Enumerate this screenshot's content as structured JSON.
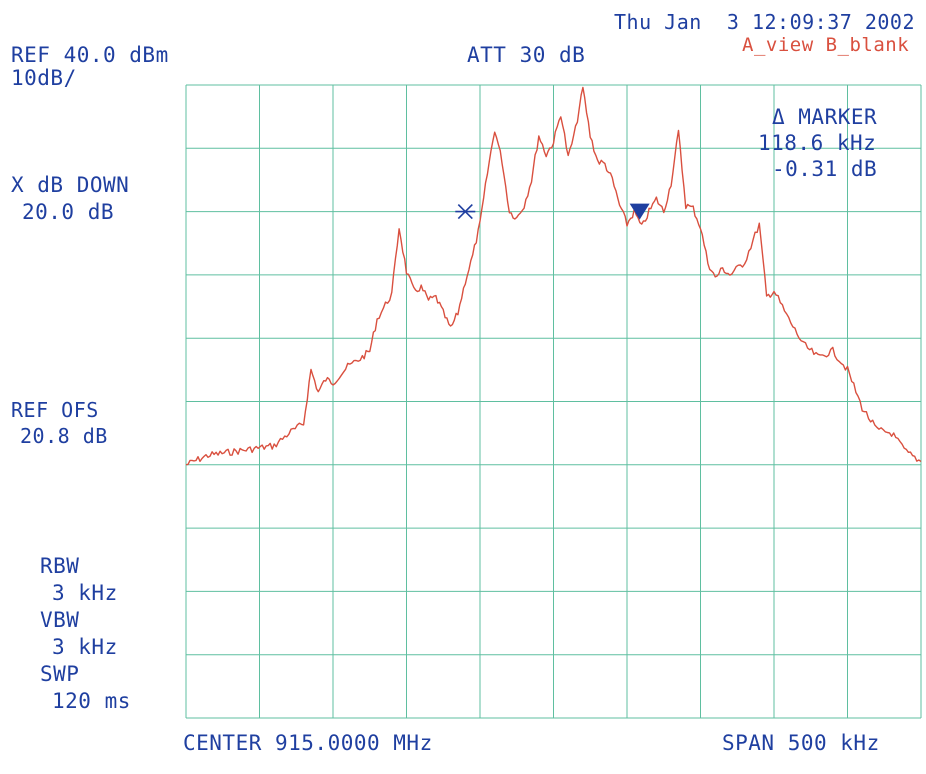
{
  "header": {
    "timestamp": "Thu Jan  3 12:09:37 2002",
    "trace_mode": "A_view B_blank",
    "ref_level": "REF 40.0 dBm",
    "scale": "10dB/",
    "attenuation": "ATT 30 dB"
  },
  "marker_readout": {
    "title": "Δ MARKER",
    "frequency": "118.6 kHz",
    "level": "-0.31 dB"
  },
  "left_panel": {
    "x_db_down_label": "X dB DOWN",
    "x_db_down_value": "20.0 dB",
    "ref_ofs_label": "REF OFS",
    "ref_ofs_value": "20.8 dB",
    "rbw_label": "RBW",
    "rbw_value": "3 kHz",
    "vbw_label": "VBW",
    "vbw_value": "3 kHz",
    "swp_label": "SWP",
    "swp_value": "120 ms"
  },
  "footer": {
    "center": "CENTER 915.0000 MHz",
    "span": "SPAN 500 kHz"
  },
  "colors": {
    "grid": "#5fbfa0",
    "trace": "#d9503f",
    "text": "#1f3fa0",
    "marker": "#1f3fa0"
  },
  "chart_data": {
    "type": "line",
    "center_mhz": 915.0,
    "span_khz": 500,
    "ylim_dbm": [
      -60,
      40
    ],
    "grid": true,
    "series": [
      {
        "x_mhz": [
          914.75,
          914.765,
          914.78,
          914.795,
          914.81,
          914.82,
          914.83,
          914.835,
          914.84,
          914.845,
          914.85,
          914.86,
          914.87,
          914.875,
          914.88,
          914.89,
          914.895,
          914.9,
          914.905,
          914.91,
          914.915,
          914.92,
          914.925,
          914.93,
          914.935,
          914.94,
          914.945,
          914.95,
          914.955,
          914.96,
          914.965,
          914.97,
          914.975,
          914.98,
          914.985,
          914.99,
          914.995,
          915.0,
          915.005,
          915.01,
          915.015,
          915.02,
          915.025,
          915.03,
          915.035,
          915.04,
          915.045,
          915.05,
          915.055,
          915.06,
          915.065,
          915.07,
          915.075,
          915.08,
          915.085,
          915.09,
          915.095,
          915.1,
          915.105,
          915.11,
          915.115,
          915.12,
          915.13,
          915.14,
          915.145,
          915.15,
          915.16,
          915.17,
          915.18,
          915.19,
          915.2,
          915.21,
          915.22,
          915.23,
          915.24,
          915.25
        ],
        "y_dbm": [
          -20.0,
          -18.5,
          -18.0,
          -17.5,
          -17.0,
          -15.0,
          -13.5,
          -5.0,
          -8.5,
          -6.5,
          -7.0,
          -4.5,
          -3.0,
          -2.0,
          3.0,
          7.0,
          17.5,
          10.5,
          7.5,
          8.0,
          6.0,
          6.5,
          4.0,
          1.5,
          4.0,
          9.0,
          13.0,
          18.0,
          26.0,
          33.0,
          28.0,
          20.0,
          19.0,
          21.0,
          25.0,
          32.0,
          29.0,
          31.0,
          35.5,
          28.5,
          33.0,
          39.5,
          32.0,
          28.0,
          27.5,
          25.0,
          21.0,
          18.0,
          20.0,
          17.5,
          20.0,
          22.0,
          20.0,
          24.5,
          32.5,
          21.0,
          20.5,
          17.5,
          12.0,
          9.5,
          11.0,
          10.0,
          12.0,
          18.0,
          6.5,
          7.5,
          3.0,
          -1.0,
          -3.0,
          -2.0,
          -5.0,
          -11.0,
          -14.5,
          -15.0,
          -18.0,
          -19.5
        ]
      }
    ],
    "markers": [
      {
        "type": "reference",
        "symbol": "asterisk",
        "x_mhz": 914.94,
        "y_dbm": 20.0
      },
      {
        "type": "delta",
        "symbol": "triangle-down",
        "x_mhz": 915.0586,
        "y_dbm": 20.0
      }
    ]
  }
}
